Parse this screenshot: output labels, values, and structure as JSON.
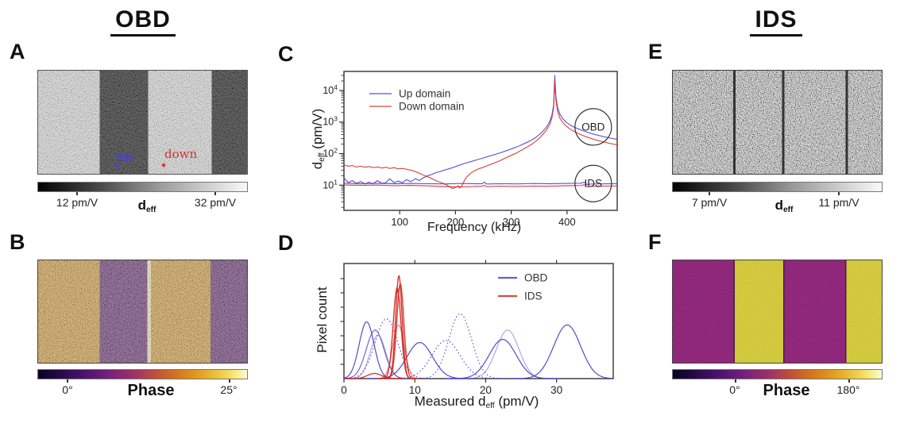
{
  "figure": {
    "title_left": "OBD",
    "title_right": "IDS",
    "panel_labels": {
      "a": "A",
      "b": "B",
      "c": "C",
      "d": "D",
      "e": "E",
      "f": "F"
    }
  },
  "colors": {
    "up_blue": "#4a42cf",
    "down_red": "#d9332e",
    "obd_blue": "#4a42c8",
    "ids_red": "#d42a24",
    "axis_dark": "#333333",
    "gray_colormap": [
      [
        "#030303",
        "0%"
      ],
      [
        "#4a4a4a",
        "30%"
      ],
      [
        "#9b9b9b",
        "58%"
      ],
      [
        "#f9f9f9",
        "100%"
      ]
    ],
    "phase_colormap": [
      [
        "#070423",
        "0%"
      ],
      [
        "#250a45",
        "10%"
      ],
      [
        "#4c1270",
        "22%"
      ],
      [
        "#75207c",
        "34%"
      ],
      [
        "#9c3365",
        "46%"
      ],
      [
        "#bd4f3c",
        "56%"
      ],
      [
        "#d4731f",
        "66%"
      ],
      [
        "#e29a1c",
        "76%"
      ],
      [
        "#ecc53c",
        "86%"
      ],
      [
        "#f7e878",
        "94%"
      ],
      [
        "#fdfad8",
        "100%"
      ]
    ]
  },
  "panel_a": {
    "up_label": "up",
    "down_label": "down",
    "colorbar": {
      "tick_left": "12 pm/V",
      "tick_right": "32 pm/V",
      "label_main": "d",
      "label_sub": "eff"
    }
  },
  "panel_b": {
    "colorbar": {
      "tick_left": "0°",
      "tick_right": "25°",
      "label": "Phase"
    }
  },
  "panel_e": {
    "colorbar": {
      "tick_left": "7 pm/V",
      "tick_right": "11 pm/V",
      "label_main": "d",
      "label_sub": "eff"
    }
  },
  "panel_f": {
    "colorbar": {
      "tick_left": "0°",
      "tick_right": "180°",
      "label": "Phase"
    }
  },
  "chart_data": [
    {
      "panel": "C",
      "type": "line",
      "xlabel": "Frequency (kHz)",
      "ylabel": "d_eff (pm/V)",
      "ylabel_parts": {
        "main": "d",
        "sub": "eff",
        "unit": " (pm/V)"
      },
      "xlim": [
        0,
        490
      ],
      "x_ticks": [
        100,
        200,
        300,
        400
      ],
      "yscale": "log",
      "ylim": [
        1.6,
        40000
      ],
      "y_tick_exponents": [
        1,
        2,
        3,
        4
      ],
      "legend": [
        {
          "label": "Up domain",
          "color_key": "up_blue"
        },
        {
          "label": "Down domain",
          "color_key": "down_red"
        }
      ],
      "annotations": [
        {
          "label": "OBD",
          "x": 447,
          "y": 700,
          "shape": "circle"
        },
        {
          "label": "IDS",
          "x": 447,
          "y": 11.3,
          "shape": "circle"
        }
      ],
      "series": [
        {
          "name": "OBD up domain",
          "color_key": "up_blue",
          "points": [
            [
              0,
              17
            ],
            [
              8,
              12
            ],
            [
              15,
              14
            ],
            [
              22,
              11.5
            ],
            [
              30,
              13
            ],
            [
              38,
              11
            ],
            [
              45,
              12.5
            ],
            [
              52,
              11
            ],
            [
              60,
              14
            ],
            [
              68,
              11.5
            ],
            [
              75,
              12
            ],
            [
              82,
              16
            ],
            [
              90,
              12
            ],
            [
              97,
              13.5
            ],
            [
              105,
              12
            ],
            [
              112,
              15
            ],
            [
              120,
              13
            ],
            [
              128,
              16
            ],
            [
              135,
              14
            ],
            [
              142,
              17
            ],
            [
              150,
              20
            ],
            [
              158,
              22
            ],
            [
              165,
              25
            ],
            [
              172,
              27
            ],
            [
              180,
              30
            ],
            [
              188,
              33
            ],
            [
              195,
              36
            ],
            [
              202,
              40
            ],
            [
              210,
              45
            ],
            [
              218,
              50
            ],
            [
              225,
              54
            ],
            [
              232,
              59
            ],
            [
              240,
              65
            ],
            [
              248,
              71
            ],
            [
              255,
              78
            ],
            [
              262,
              85
            ],
            [
              270,
              93
            ],
            [
              278,
              103
            ],
            [
              285,
              113
            ],
            [
              292,
              125
            ],
            [
              300,
              140
            ],
            [
              308,
              158
            ],
            [
              315,
              178
            ],
            [
              322,
              203
            ],
            [
              330,
              235
            ],
            [
              338,
              278
            ],
            [
              345,
              335
            ],
            [
              352,
              420
            ],
            [
              358,
              540
            ],
            [
              364,
              720
            ],
            [
              369,
              1050
            ],
            [
              373,
              1700
            ],
            [
              376,
              3500
            ],
            [
              378,
              30000
            ],
            [
              380,
              6500
            ],
            [
              383,
              2900
            ],
            [
              387,
              1800
            ],
            [
              392,
              1300
            ],
            [
              398,
              1000
            ],
            [
              405,
              820
            ],
            [
              412,
              700
            ],
            [
              420,
              610
            ],
            [
              430,
              520
            ],
            [
              440,
              455
            ],
            [
              450,
              405
            ],
            [
              460,
              365
            ],
            [
              470,
              332
            ],
            [
              480,
              305
            ],
            [
              490,
              282
            ]
          ]
        },
        {
          "name": "OBD down domain",
          "color_key": "down_red",
          "points": [
            [
              0,
              44
            ],
            [
              8,
              40
            ],
            [
              15,
              42
            ],
            [
              22,
              38
            ],
            [
              30,
              40
            ],
            [
              38,
              37
            ],
            [
              45,
              39
            ],
            [
              52,
              36
            ],
            [
              60,
              38
            ],
            [
              68,
              35
            ],
            [
              75,
              37
            ],
            [
              82,
              34
            ],
            [
              90,
              36
            ],
            [
              97,
              33
            ],
            [
              105,
              34
            ],
            [
              112,
              32
            ],
            [
              120,
              30
            ],
            [
              128,
              27
            ],
            [
              135,
              24
            ],
            [
              142,
              21
            ],
            [
              150,
              18.5
            ],
            [
              158,
              16
            ],
            [
              165,
              14
            ],
            [
              172,
              12.5
            ],
            [
              180,
              11
            ],
            [
              185,
              10
            ],
            [
              190,
              8.8
            ],
            [
              195,
              7.8
            ],
            [
              200,
              8.5
            ],
            [
              205,
              9.5
            ],
            [
              208,
              8.2
            ],
            [
              212,
              10
            ],
            [
              216,
              14
            ],
            [
              220,
              18
            ],
            [
              225,
              22
            ],
            [
              230,
              26
            ],
            [
              235,
              29
            ],
            [
              240,
              32
            ],
            [
              248,
              36
            ],
            [
              255,
              40
            ],
            [
              262,
              45
            ],
            [
              270,
              51
            ],
            [
              278,
              58
            ],
            [
              285,
              66
            ],
            [
              292,
              76
            ],
            [
              300,
              88
            ],
            [
              308,
              102
            ],
            [
              315,
              119
            ],
            [
              322,
              140
            ],
            [
              330,
              168
            ],
            [
              338,
              205
            ],
            [
              345,
              255
            ],
            [
              352,
              330
            ],
            [
              358,
              430
            ],
            [
              364,
              580
            ],
            [
              369,
              850
            ],
            [
              373,
              1400
            ],
            [
              376,
              2900
            ],
            [
              378,
              20000
            ],
            [
              380,
              5000
            ],
            [
              383,
              2200
            ],
            [
              387,
              1350
            ],
            [
              392,
              980
            ],
            [
              398,
              760
            ],
            [
              405,
              610
            ],
            [
              412,
              510
            ],
            [
              420,
              435
            ],
            [
              430,
              365
            ],
            [
              440,
              315
            ],
            [
              450,
              278
            ],
            [
              460,
              248
            ],
            [
              470,
              224
            ],
            [
              480,
              204
            ],
            [
              490,
              188
            ]
          ]
        },
        {
          "name": "IDS up domain",
          "color_key": "up_blue",
          "points": [
            [
              0,
              11.6
            ],
            [
              30,
              11.2
            ],
            [
              60,
              11.5
            ],
            [
              90,
              11.1
            ],
            [
              120,
              11.4
            ],
            [
              150,
              11.2
            ],
            [
              180,
              11
            ],
            [
              210,
              11.3
            ],
            [
              240,
              11.1
            ],
            [
              248,
              11.2
            ],
            [
              252,
              12.4
            ],
            [
              256,
              10.9
            ],
            [
              280,
              11.2
            ],
            [
              310,
              11
            ],
            [
              340,
              11.3
            ],
            [
              370,
              11.1
            ],
            [
              400,
              11.4
            ],
            [
              425,
              11.6
            ],
            [
              431,
              12.4
            ],
            [
              435,
              10.6
            ],
            [
              445,
              10.9
            ],
            [
              460,
              11
            ],
            [
              475,
              11.1
            ],
            [
              490,
              11.2
            ]
          ]
        },
        {
          "name": "IDS down domain",
          "color_key": "down_red",
          "points": [
            [
              0,
              10.2
            ],
            [
              30,
              9.9
            ],
            [
              60,
              10.1
            ],
            [
              90,
              9.7
            ],
            [
              120,
              9.9
            ],
            [
              150,
              9.5
            ],
            [
              180,
              9.1
            ],
            [
              200,
              8.8
            ],
            [
              220,
              9
            ],
            [
              248,
              9.3
            ],
            [
              252,
              10
            ],
            [
              256,
              9
            ],
            [
              280,
              9.3
            ],
            [
              310,
              9.2
            ],
            [
              340,
              9.4
            ],
            [
              370,
              9.3
            ],
            [
              400,
              9.6
            ],
            [
              425,
              9.8
            ],
            [
              431,
              10.4
            ],
            [
              435,
              8.9
            ],
            [
              445,
              9.2
            ],
            [
              460,
              9.3
            ],
            [
              475,
              9.4
            ],
            [
              490,
              9.5
            ]
          ]
        }
      ]
    },
    {
      "panel": "D",
      "type": "line",
      "xlabel": "Measured d_eff (pm/V)",
      "xlabel_parts": {
        "main": "Measured d",
        "sub": "eff",
        "unit": " (pm/V)"
      },
      "ylabel": "Pixel count",
      "xlim": [
        0,
        38
      ],
      "x_ticks": [
        0,
        10,
        20,
        30
      ],
      "top_ticks": [
        10,
        20,
        30
      ],
      "ylim": [
        0,
        1.08
      ],
      "legend": [
        {
          "label": "OBD",
          "color_key": "obd_blue"
        },
        {
          "label": "IDS",
          "color_key": "ids_red"
        }
      ],
      "curves": [
        {
          "group": "OBD",
          "mean": 3.2,
          "sigma": 1.05,
          "height": 0.55,
          "style": "solid",
          "opacity": 0.95
        },
        {
          "group": "OBD",
          "mean": 4.4,
          "sigma": 1.25,
          "height": 0.47,
          "style": "solid",
          "opacity": 0.8
        },
        {
          "group": "OBD",
          "mean": 4.8,
          "sigma": 1.1,
          "height": 0.42,
          "style": "solid",
          "opacity": 0.45
        },
        {
          "group": "OBD",
          "mean": 6.0,
          "sigma": 1.6,
          "height": 0.58,
          "style": "dotted",
          "opacity": 0.9
        },
        {
          "group": "OBD",
          "mean": 10.7,
          "sigma": 1.8,
          "height": 0.35,
          "style": "solid",
          "opacity": 0.95
        },
        {
          "group": "OBD",
          "mean": 14.4,
          "sigma": 2.0,
          "height": 0.37,
          "style": "dotted",
          "opacity": 0.9
        },
        {
          "group": "OBD",
          "mean": 16.4,
          "sigma": 1.6,
          "height": 0.63,
          "style": "dotted",
          "opacity": 0.85
        },
        {
          "group": "OBD",
          "mean": 22.4,
          "sigma": 1.9,
          "height": 0.38,
          "style": "solid",
          "opacity": 0.95
        },
        {
          "group": "OBD",
          "mean": 23.1,
          "sigma": 1.6,
          "height": 0.47,
          "style": "solid",
          "opacity": 0.45
        },
        {
          "group": "OBD",
          "mean": 31.5,
          "sigma": 1.9,
          "height": 0.52,
          "style": "solid",
          "opacity": 0.95
        },
        {
          "group": "IDS",
          "mean": 7.5,
          "sigma": 0.55,
          "height": 0.88,
          "style": "solid",
          "opacity": 0.95
        },
        {
          "group": "IDS",
          "mean": 7.75,
          "sigma": 0.45,
          "height": 1.0,
          "style": "solid",
          "opacity": 0.95
        },
        {
          "group": "IDS",
          "mean": 7.95,
          "sigma": 0.5,
          "height": 0.92,
          "style": "solid",
          "opacity": 0.9
        },
        {
          "group": "IDS",
          "mean": 7.7,
          "sigma": 0.8,
          "height": 0.52,
          "style": "solid",
          "opacity": 0.5
        },
        {
          "group": "IDS",
          "mean": 4.3,
          "sigma": 1.0,
          "height": 0.05,
          "style": "solid",
          "opacity": 0.9
        }
      ]
    }
  ]
}
